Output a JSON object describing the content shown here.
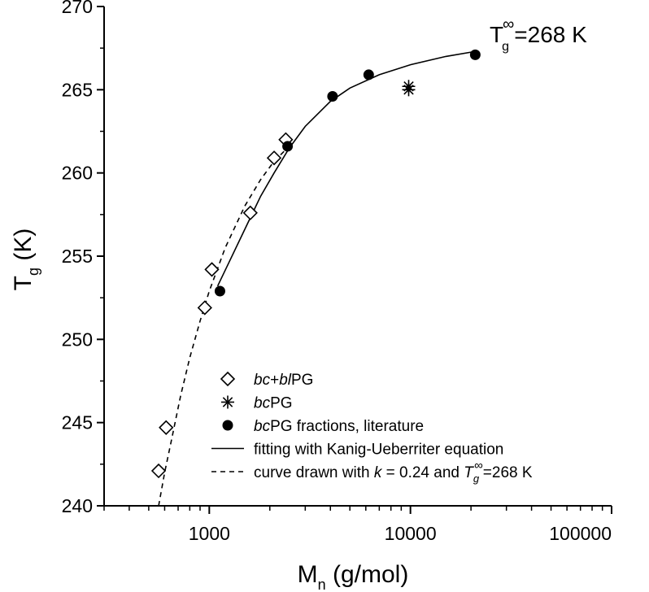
{
  "chart_data": {
    "type": "scatter",
    "xscale": "log",
    "xlim": [
      300,
      100000
    ],
    "ylim": [
      240,
      270
    ],
    "xlabel": {
      "main": "M",
      "sub": "n",
      "rest": " (g/mol)"
    },
    "ylabel": {
      "main": "T",
      "sub": "g",
      "rest": " (K)"
    },
    "xticks": [
      {
        "value": 1000,
        "label": "1000"
      },
      {
        "value": 10000,
        "label": "10000"
      },
      {
        "value": 100000,
        "label": "100000"
      }
    ],
    "yticks": [
      {
        "value": 240,
        "label": "240"
      },
      {
        "value": 245,
        "label": "245"
      },
      {
        "value": 250,
        "label": "250"
      },
      {
        "value": 255,
        "label": "255"
      },
      {
        "value": 260,
        "label": "260"
      },
      {
        "value": 265,
        "label": "265"
      },
      {
        "value": 270,
        "label": "270"
      }
    ],
    "annotation": {
      "main": "T",
      "sub": "g",
      "sup": "∞",
      "rest": "=268 K"
    },
    "series": [
      {
        "name": "bc+blPG",
        "name_parts": [
          [
            "bc",
            true
          ],
          [
            "+",
            false
          ],
          [
            "bl",
            true
          ],
          [
            "PG",
            false
          ]
        ],
        "marker": "diamond",
        "points": [
          [
            560,
            242.1
          ],
          [
            610,
            244.7
          ],
          [
            950,
            251.9
          ],
          [
            1030,
            254.2
          ],
          [
            1600,
            257.6
          ],
          [
            2100,
            260.9
          ],
          [
            2400,
            262.0
          ]
        ]
      },
      {
        "name": "bcPG",
        "name_parts": [
          [
            "bc",
            true
          ],
          [
            "PG",
            false
          ]
        ],
        "marker": "asterisk",
        "points": [
          [
            9800,
            265.0
          ],
          [
            9800,
            265.2
          ]
        ]
      },
      {
        "name": "bcPG fractions, literature",
        "name_parts": [
          [
            "bc",
            true
          ],
          [
            "PG fractions, literature",
            false
          ]
        ],
        "marker": "filled-circle",
        "points": [
          [
            1130,
            252.9
          ],
          [
            2450,
            261.6
          ],
          [
            4100,
            264.6
          ],
          [
            6200,
            265.9
          ],
          [
            21000,
            267.1
          ]
        ]
      },
      {
        "name": "fitting with Kanig-Ueberriter equation",
        "name_parts": [
          [
            "fitting with Kanig-Ueberriter equation",
            false
          ]
        ],
        "marker": "solid-line",
        "points": [
          [
            1100,
            253.2
          ],
          [
            1250,
            254.6
          ],
          [
            1500,
            256.6
          ],
          [
            1800,
            258.6
          ],
          [
            2100,
            260.0
          ],
          [
            2500,
            261.5
          ],
          [
            3000,
            262.8
          ],
          [
            4000,
            264.3
          ],
          [
            5000,
            265.1
          ],
          [
            7000,
            265.9
          ],
          [
            10000,
            266.5
          ],
          [
            15000,
            267.0
          ],
          [
            21000,
            267.3
          ]
        ]
      },
      {
        "name": "curve drawn with k = 0.24 and Tg∞=268 K",
        "name_parts": [
          [
            "curve drawn with ",
            false
          ],
          [
            "k",
            true
          ],
          [
            " = 0.24 and ",
            false
          ],
          [
            "T",
            true
          ],
          [
            "g",
            "sub-italic"
          ],
          [
            "∞",
            "sup"
          ],
          [
            "=268 K",
            false
          ]
        ],
        "marker": "dashed-line",
        "points": [
          [
            560,
            240.0
          ],
          [
            600,
            242.0
          ],
          [
            650,
            244.0
          ],
          [
            720,
            246.6
          ],
          [
            800,
            248.9
          ],
          [
            900,
            251.1
          ],
          [
            1000,
            252.9
          ],
          [
            1200,
            255.5
          ],
          [
            1500,
            258.0
          ],
          [
            1800,
            259.6
          ],
          [
            2100,
            260.7
          ],
          [
            2400,
            261.4
          ]
        ]
      }
    ]
  }
}
